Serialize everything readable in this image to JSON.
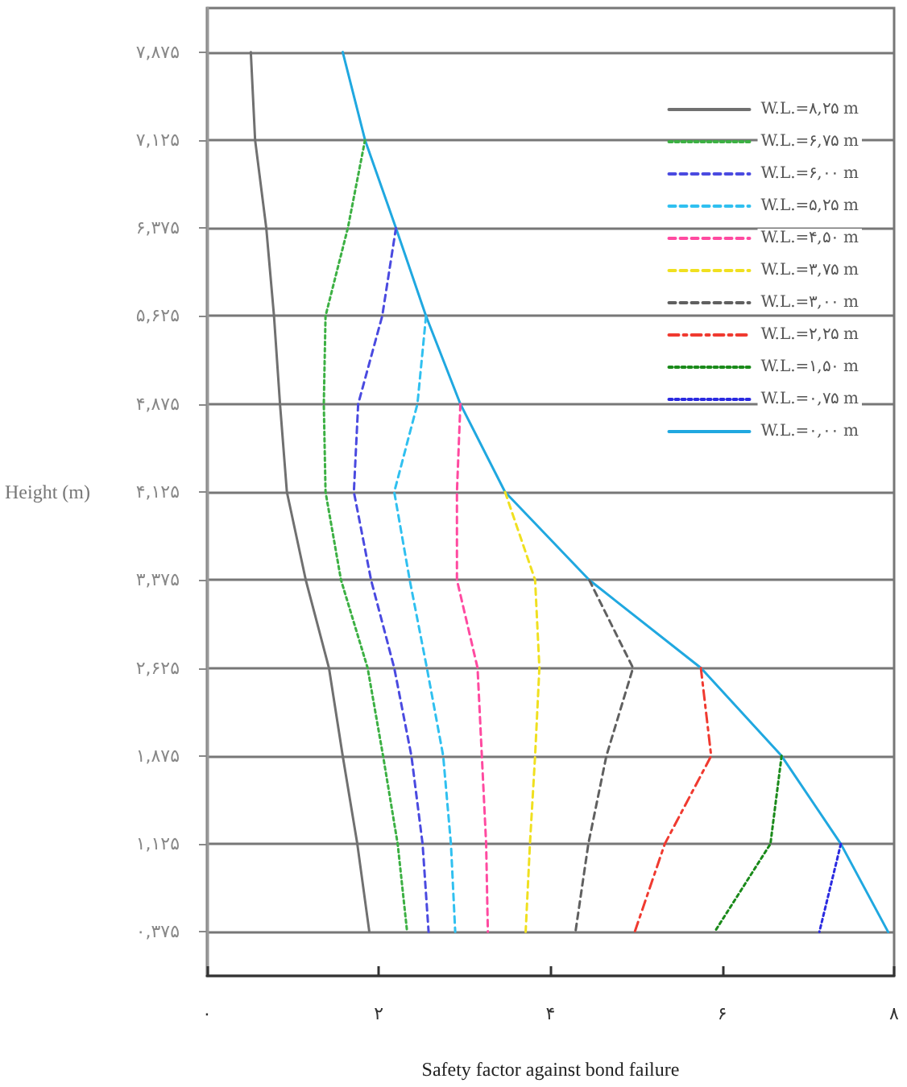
{
  "chart_data": {
    "type": "line",
    "xlabel": "Safety factor against bond failure",
    "ylabel": "Height (m)",
    "xlim": [
      0,
      8
    ],
    "xticks": [
      {
        "value": 0,
        "label": "۰"
      },
      {
        "value": 2,
        "label": "۲"
      },
      {
        "value": 4,
        "label": "۴"
      },
      {
        "value": 6,
        "label": "۶"
      },
      {
        "value": 8,
        "label": "۸"
      }
    ],
    "ylim": [
      0,
      8.25
    ],
    "yticks": [
      {
        "value": 0.375,
        "label": "۰,۳۷۵"
      },
      {
        "value": 1.125,
        "label": "۱,۱۲۵"
      },
      {
        "value": 1.875,
        "label": "۱,۸۷۵"
      },
      {
        "value": 2.625,
        "label": "۲,۶۲۵"
      },
      {
        "value": 3.375,
        "label": "۳,۳۷۵"
      },
      {
        "value": 4.125,
        "label": "۴,۱۲۵"
      },
      {
        "value": 4.875,
        "label": "۴,۸۷۵"
      },
      {
        "value": 5.625,
        "label": "۵,۶۲۵"
      },
      {
        "value": 6.375,
        "label": "۶,۳۷۵"
      },
      {
        "value": 7.125,
        "label": "۷,۱۲۵"
      },
      {
        "value": 7.875,
        "label": "۷,۸۷۵"
      }
    ],
    "grid": "y",
    "legend": "top right",
    "marker": "none",
    "series": [
      {
        "name": "W.L.=۸,۲۵ m",
        "color": "#707070",
        "line_style": "solid",
        "x": [
          0.51,
          0.56,
          0.69,
          0.78,
          0.85,
          0.93,
          1.15,
          1.42,
          1.58,
          1.75,
          1.89
        ],
        "values": [
          7.875,
          7.125,
          6.375,
          5.625,
          4.875,
          4.125,
          3.375,
          2.625,
          1.875,
          1.125,
          0.375
        ]
      },
      {
        "name": "W.L.=۶,۷۵ m",
        "color": "#3cb043",
        "line_style": "dotted",
        "x": [
          1.84,
          1.64,
          1.38,
          1.36,
          1.38,
          1.56,
          1.87,
          2.05,
          2.22,
          2.33
        ],
        "values": [
          7.125,
          6.375,
          5.625,
          4.875,
          4.125,
          3.375,
          2.625,
          1.875,
          1.125,
          0.375
        ]
      },
      {
        "name": "W.L.=۶,۰۰ m",
        "color": "#4a4ae0",
        "line_style": "dashed",
        "x": [
          2.2,
          2.04,
          1.76,
          1.71,
          1.91,
          2.18,
          2.38,
          2.51,
          2.58
        ],
        "values": [
          6.375,
          5.625,
          4.875,
          4.125,
          3.375,
          2.625,
          1.875,
          1.125,
          0.375
        ]
      },
      {
        "name": "W.L.=۵,۲۵ m",
        "color": "#30c0f0",
        "line_style": "dashed",
        "x": [
          2.55,
          2.45,
          2.18,
          2.36,
          2.56,
          2.75,
          2.84,
          2.89
        ],
        "values": [
          5.625,
          4.875,
          4.125,
          3.375,
          2.625,
          1.875,
          1.125,
          0.375
        ]
      },
      {
        "name": "W.L.=۴,۵۰ m",
        "color": "#ff4aa0",
        "line_style": "dashed",
        "x": [
          2.95,
          2.91,
          2.91,
          3.15,
          3.2,
          3.25,
          3.27
        ],
        "values": [
          4.875,
          4.125,
          3.375,
          2.625,
          1.875,
          1.125,
          0.375
        ]
      },
      {
        "name": "W.L.=۳,۷۵ m",
        "color": "#f0e020",
        "line_style": "dashed",
        "x": [
          3.47,
          3.82,
          3.87,
          3.82,
          3.76,
          3.71
        ],
        "values": [
          4.125,
          3.375,
          2.625,
          1.875,
          1.125,
          0.375
        ]
      },
      {
        "name": "W.L.=۳,۰۰ m",
        "color": "#606060",
        "line_style": "dashed",
        "x": [
          4.45,
          4.96,
          4.65,
          4.44,
          4.29
        ],
        "values": [
          3.375,
          2.625,
          1.875,
          1.125,
          0.375
        ]
      },
      {
        "name": "W.L.=۲,۲۵ m",
        "color": "#f03a30",
        "line_style": "dashdot",
        "x": [
          5.75,
          5.87,
          5.33,
          4.98
        ],
        "values": [
          2.625,
          1.875,
          1.125,
          0.375
        ]
      },
      {
        "name": "W.L.=۱,۵۰ m",
        "color": "#1a8a1a",
        "line_style": "dotted",
        "x": [
          6.69,
          6.56,
          5.91
        ],
        "values": [
          1.875,
          1.125,
          0.375
        ]
      },
      {
        "name": "W.L.=۰,۷۵ m",
        "color": "#2a2ae0",
        "line_style": "dotted",
        "x": [
          7.38,
          7.13
        ],
        "values": [
          1.125,
          0.375
        ]
      },
      {
        "name": "W.L.=۰,۰۰ m",
        "color": "#20a8e0",
        "line_style": "solid",
        "x": [
          1.58,
          1.84,
          2.2,
          2.55,
          2.95,
          3.47,
          4.45,
          5.75,
          6.69,
          7.38,
          7.93
        ],
        "values": [
          7.875,
          7.125,
          6.375,
          5.625,
          4.875,
          4.125,
          3.375,
          2.625,
          1.875,
          1.125,
          0.375
        ]
      }
    ]
  }
}
